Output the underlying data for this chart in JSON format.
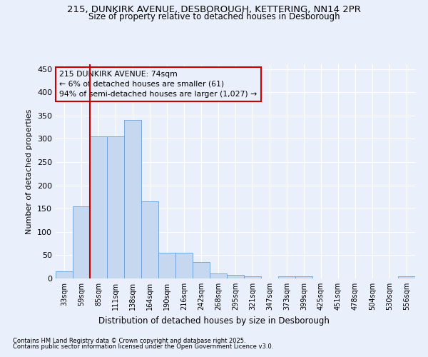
{
  "title_line1": "215, DUNKIRK AVENUE, DESBOROUGH, KETTERING, NN14 2PR",
  "title_line2": "Size of property relative to detached houses in Desborough",
  "xlabel": "Distribution of detached houses by size in Desborough",
  "ylabel": "Number of detached properties",
  "footer_line1": "Contains HM Land Registry data © Crown copyright and database right 2025.",
  "footer_line2": "Contains public sector information licensed under the Open Government Licence v3.0.",
  "categories": [
    "33sqm",
    "59sqm",
    "85sqm",
    "111sqm",
    "138sqm",
    "164sqm",
    "190sqm",
    "216sqm",
    "242sqm",
    "268sqm",
    "295sqm",
    "321sqm",
    "347sqm",
    "373sqm",
    "399sqm",
    "425sqm",
    "451sqm",
    "478sqm",
    "504sqm",
    "530sqm",
    "556sqm"
  ],
  "values": [
    15,
    155,
    305,
    305,
    340,
    165,
    55,
    55,
    35,
    10,
    7,
    5,
    0,
    5,
    5,
    0,
    0,
    0,
    0,
    0,
    5
  ],
  "bar_color": "#c5d8f0",
  "bar_edge_color": "#6a9fd8",
  "annotation_text": "215 DUNKIRK AVENUE: 74sqm\n← 6% of detached houses are smaller (61)\n94% of semi-detached houses are larger (1,027) →",
  "annotation_box_edge": "#cc0000",
  "vline_x": 1.5,
  "vline_color": "#cc0000",
  "ylim": [
    0,
    460
  ],
  "yticks": [
    0,
    50,
    100,
    150,
    200,
    250,
    300,
    350,
    400,
    450
  ],
  "bg_color": "#eaf0fb",
  "grid_color": "#ffffff",
  "title_fontsize1": 9.5,
  "title_fontsize2": 8.5
}
